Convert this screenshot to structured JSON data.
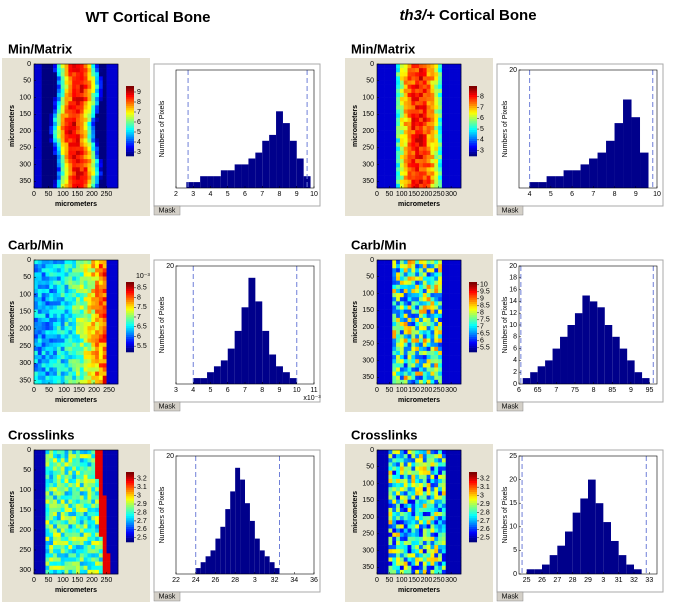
{
  "columns": [
    {
      "title": "WT Cortical Bone",
      "panels": [
        {
          "label": "Min/Matrix",
          "heatmap": {
            "xlabel": "micrometers",
            "ylabel": "micrometers",
            "xlim": [
              0,
              290
            ],
            "ylim": [
              0,
              370
            ],
            "xticks": [
              0,
              50,
              100,
              150,
              200,
              250
            ],
            "yticks": [
              0,
              50,
              100,
              150,
              200,
              250,
              300,
              350
            ],
            "colorbar_lim": [
              2.6,
              9.6
            ],
            "colorbar_ticks": [
              3,
              4,
              5,
              6,
              7,
              8,
              9
            ]
          },
          "histogram": {
            "ylabel": "Numbers of Pixels",
            "button": "Mask",
            "color": "#00008b",
            "xlim": [
              2,
              10
            ],
            "ylim": [
              0,
              20
            ],
            "xticks": [
              2,
              3,
              4,
              5,
              6,
              7,
              8,
              9,
              10
            ],
            "bins": [
              2.6,
              3,
              3.4,
              3.8,
              4.2,
              4.6,
              5,
              5.4,
              5.8,
              6.2,
              6.6,
              7,
              7.4,
              7.8,
              8.2,
              8.6,
              9,
              9.4,
              9.8
            ],
            "counts": [
              1,
              1,
              2,
              2,
              2,
              3,
              3,
              4,
              4,
              5,
              6,
              8,
              9,
              13,
              11,
              8,
              5,
              2
            ],
            "limits": [
              2.7,
              9.6
            ]
          }
        },
        {
          "label": "Carb/Min",
          "heatmap": {
            "xlabel": "micrometers",
            "ylabel": "micrometers",
            "xlim": [
              0,
              280
            ],
            "ylim": [
              0,
              360
            ],
            "xticks": [
              0,
              50,
              100,
              150,
              200,
              250
            ],
            "yticks": [
              0,
              50,
              100,
              150,
              200,
              250,
              300,
              350
            ],
            "colorbar_lim": [
              5.2,
              8.8
            ],
            "colorbar_ticks": [
              5.5,
              6,
              6.5,
              7,
              7.5,
              8,
              8.5
            ],
            "colorbar_exponent": "10⁻³"
          },
          "histogram": {
            "ylabel": "Numbers of Pixels",
            "button": "Mask",
            "color": "#00008b",
            "xlim": [
              3,
              11
            ],
            "ylim": [
              0,
              20
            ],
            "xticks": [
              3,
              4,
              5,
              6,
              7,
              8,
              9,
              10,
              11
            ],
            "yticks": [
              20
            ],
            "exponent": "x10⁻³",
            "bins": [
              4,
              4.4,
              4.8,
              5.2,
              5.6,
              6,
              6.4,
              6.8,
              7.2,
              7.6,
              8,
              8.4,
              8.8,
              9.2,
              9.6,
              10
            ],
            "counts": [
              1,
              1,
              2,
              3,
              4,
              6,
              9,
              13,
              18,
              14,
              9,
              5,
              3,
              2,
              1
            ],
            "limits": [
              4,
              10
            ]
          }
        },
        {
          "label": "Crosslinks",
          "heatmap": {
            "xlabel": "micrometers",
            "ylabel": "micrometers",
            "xlim": [
              0,
              290
            ],
            "ylim": [
              0,
              310
            ],
            "xticks": [
              0,
              50,
              100,
              150,
              200,
              250
            ],
            "yticks": [
              0,
              50,
              100,
              150,
              200,
              250,
              300
            ],
            "colorbar_lim": [
              2.45,
              3.28
            ],
            "colorbar_ticks": [
              2.5,
              2.6,
              2.7,
              2.8,
              2.9,
              3,
              3.1,
              3.2
            ]
          },
          "histogram": {
            "ylabel": "Numbers of Pixels",
            "button": "Mask",
            "color": "#00008b",
            "xlim": [
              2.2,
              3.6
            ],
            "ylim": [
              0,
              20
            ],
            "yticks": [
              20
            ],
            "xticks": [
              {
                "value": 2.2,
                "label": "22"
              },
              {
                "value": 2.4,
                "label": "24"
              },
              {
                "value": 2.6,
                "label": "26"
              },
              {
                "value": 2.8,
                "label": "28"
              },
              3,
              {
                "value": 3.2,
                "label": "32"
              },
              {
                "value": 3.4,
                "label": "34"
              },
              {
                "value": 3.6,
                "label": "36"
              }
            ],
            "bins": [
              2.4,
              2.45,
              2.5,
              2.55,
              2.6,
              2.65,
              2.7,
              2.75,
              2.8,
              2.85,
              2.9,
              2.95,
              3,
              3.05,
              3.1,
              3.15,
              3.2,
              3.25
            ],
            "counts": [
              1,
              2,
              3,
              4,
              6,
              8,
              11,
              14,
              18,
              16,
              12,
              9,
              6,
              4,
              3,
              2,
              1
            ],
            "limits": [
              2.4,
              3.25
            ]
          }
        }
      ]
    },
    {
      "title_italic": "th3/+",
      "title": "Cortical Bone",
      "panels": [
        {
          "label": "Min/Matrix",
          "heatmap": {
            "xlabel": "micrometers",
            "ylabel": "micrometers",
            "xlim": [
              0,
              340
            ],
            "ylim": [
              0,
              370
            ],
            "xticks": [
              0,
              50,
              100,
              150,
              200,
              250,
              300
            ],
            "yticks": [
              0,
              50,
              100,
              150,
              200,
              250,
              300,
              350
            ],
            "colorbar_lim": [
              2.5,
              9
            ],
            "colorbar_ticks": [
              3,
              4,
              5,
              6,
              7,
              8
            ]
          },
          "histogram": {
            "ylabel": "Numbers of Pixels",
            "button": "Mask",
            "color": "#00008b",
            "xlim": [
              3.5,
              10
            ],
            "ylim": [
              0,
              20
            ],
            "xticks": [
              4,
              5,
              6,
              7,
              8,
              9,
              10
            ],
            "yticks": [
              20
            ],
            "bins": [
              4,
              4.4,
              4.8,
              5.2,
              5.6,
              6,
              6.4,
              6.8,
              7.2,
              7.6,
              8,
              8.4,
              8.8,
              9.2,
              9.6
            ],
            "counts": [
              1,
              1,
              2,
              2,
              3,
              3,
              4,
              5,
              6,
              8,
              11,
              15,
              12,
              6
            ],
            "limits": [
              4,
              9.8
            ]
          }
        },
        {
          "label": "Carb/Min",
          "heatmap": {
            "xlabel": "micrometers",
            "ylabel": "micrometers",
            "xlim": [
              0,
              340
            ],
            "ylim": [
              0,
              370
            ],
            "xticks": [
              0,
              50,
              100,
              150,
              200,
              250,
              300
            ],
            "yticks": [
              0,
              50,
              100,
              150,
              200,
              250,
              300,
              350
            ],
            "colorbar_lim": [
              5.2,
              10.2
            ],
            "colorbar_ticks": [
              5.5,
              6,
              6.5,
              7,
              7.5,
              8,
              8.5,
              9,
              9.5,
              10
            ]
          },
          "histogram": {
            "ylabel": "Numbers of Pixels",
            "button": "Mask",
            "color": "#00008b",
            "xlim": [
              6,
              9.7
            ],
            "ylim": [
              0,
              20
            ],
            "yticks": [
              0,
              2,
              4,
              6,
              8,
              10,
              12,
              14,
              16,
              18,
              20
            ],
            "xticks": [
              6,
              {
                "value": 6.5,
                "label": "65"
              },
              7,
              {
                "value": 7.5,
                "label": "75"
              },
              8,
              {
                "value": 8.5,
                "label": "85"
              },
              9,
              {
                "value": 9.5,
                "label": "95"
              }
            ],
            "bins": [
              6.1,
              6.3,
              6.5,
              6.7,
              6.9,
              7.1,
              7.3,
              7.5,
              7.7,
              7.9,
              8.1,
              8.3,
              8.5,
              8.7,
              8.9,
              9.1,
              9.3,
              9.5
            ],
            "counts": [
              1,
              2,
              3,
              4,
              6,
              8,
              10,
              12,
              15,
              14,
              13,
              10,
              8,
              6,
              4,
              2,
              1
            ],
            "limits": [
              6.05,
              9.6
            ]
          }
        },
        {
          "label": "Crosslinks",
          "heatmap": {
            "xlabel": "micrometers",
            "ylabel": "micrometers",
            "xlim": [
              0,
              340
            ],
            "ylim": [
              0,
              370
            ],
            "xticks": [
              0,
              50,
              100,
              150,
              200,
              250,
              300
            ],
            "yticks": [
              0,
              50,
              100,
              150,
              200,
              250,
              300,
              350
            ],
            "colorbar_lim": [
              2.45,
              3.28
            ],
            "colorbar_ticks": [
              2.5,
              2.6,
              2.7,
              2.8,
              2.9,
              3,
              3.1,
              3.2
            ]
          },
          "histogram": {
            "ylabel": "Numbers of Pixels",
            "button": "Mask",
            "color": "#00008b",
            "xlim": [
              2.45,
              3.35
            ],
            "ylim": [
              0,
              25
            ],
            "yticks": [
              0,
              5,
              10,
              15,
              20,
              25
            ],
            "xticks": [
              {
                "value": 2.5,
                "label": "25"
              },
              {
                "value": 2.6,
                "label": "26"
              },
              {
                "value": 2.7,
                "label": "27"
              },
              {
                "value": 2.8,
                "label": "28"
              },
              {
                "value": 2.9,
                "label": "29"
              },
              3,
              {
                "value": 3.1,
                "label": "31"
              },
              {
                "value": 3.2,
                "label": "32"
              },
              {
                "value": 3.3,
                "label": "33"
              }
            ],
            "bins": [
              2.5,
              2.55,
              2.6,
              2.65,
              2.7,
              2.75,
              2.8,
              2.85,
              2.9,
              2.95,
              3,
              3.05,
              3.1,
              3.15,
              3.2,
              3.25
            ],
            "counts": [
              1,
              1,
              2,
              4,
              6,
              9,
              13,
              16,
              20,
              15,
              11,
              7,
              4,
              2,
              1
            ],
            "limits": [
              2.47,
              3.28
            ]
          }
        }
      ]
    }
  ]
}
